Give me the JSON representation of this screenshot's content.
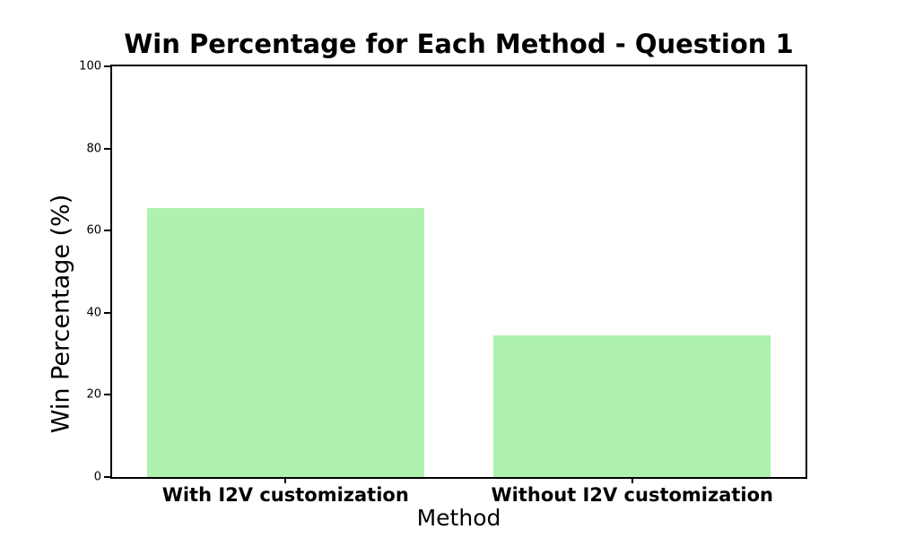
{
  "figure": {
    "background": "#ffffff"
  },
  "chart_data": {
    "type": "bar",
    "title": "Win Percentage for Each Method - Question 1",
    "xlabel": "Method",
    "ylabel": "Win Percentage (%)",
    "categories": [
      "With I2V customization",
      "Without I2V customization"
    ],
    "values": [
      65.4,
      34.6
    ],
    "ylim": [
      0,
      100
    ],
    "yticks": [
      0,
      20,
      40,
      60,
      80,
      100
    ],
    "bar_color": "#aef2ae",
    "axis_color": "#000000",
    "bar_width_fraction": 0.8,
    "grid": false,
    "legend": "none"
  }
}
